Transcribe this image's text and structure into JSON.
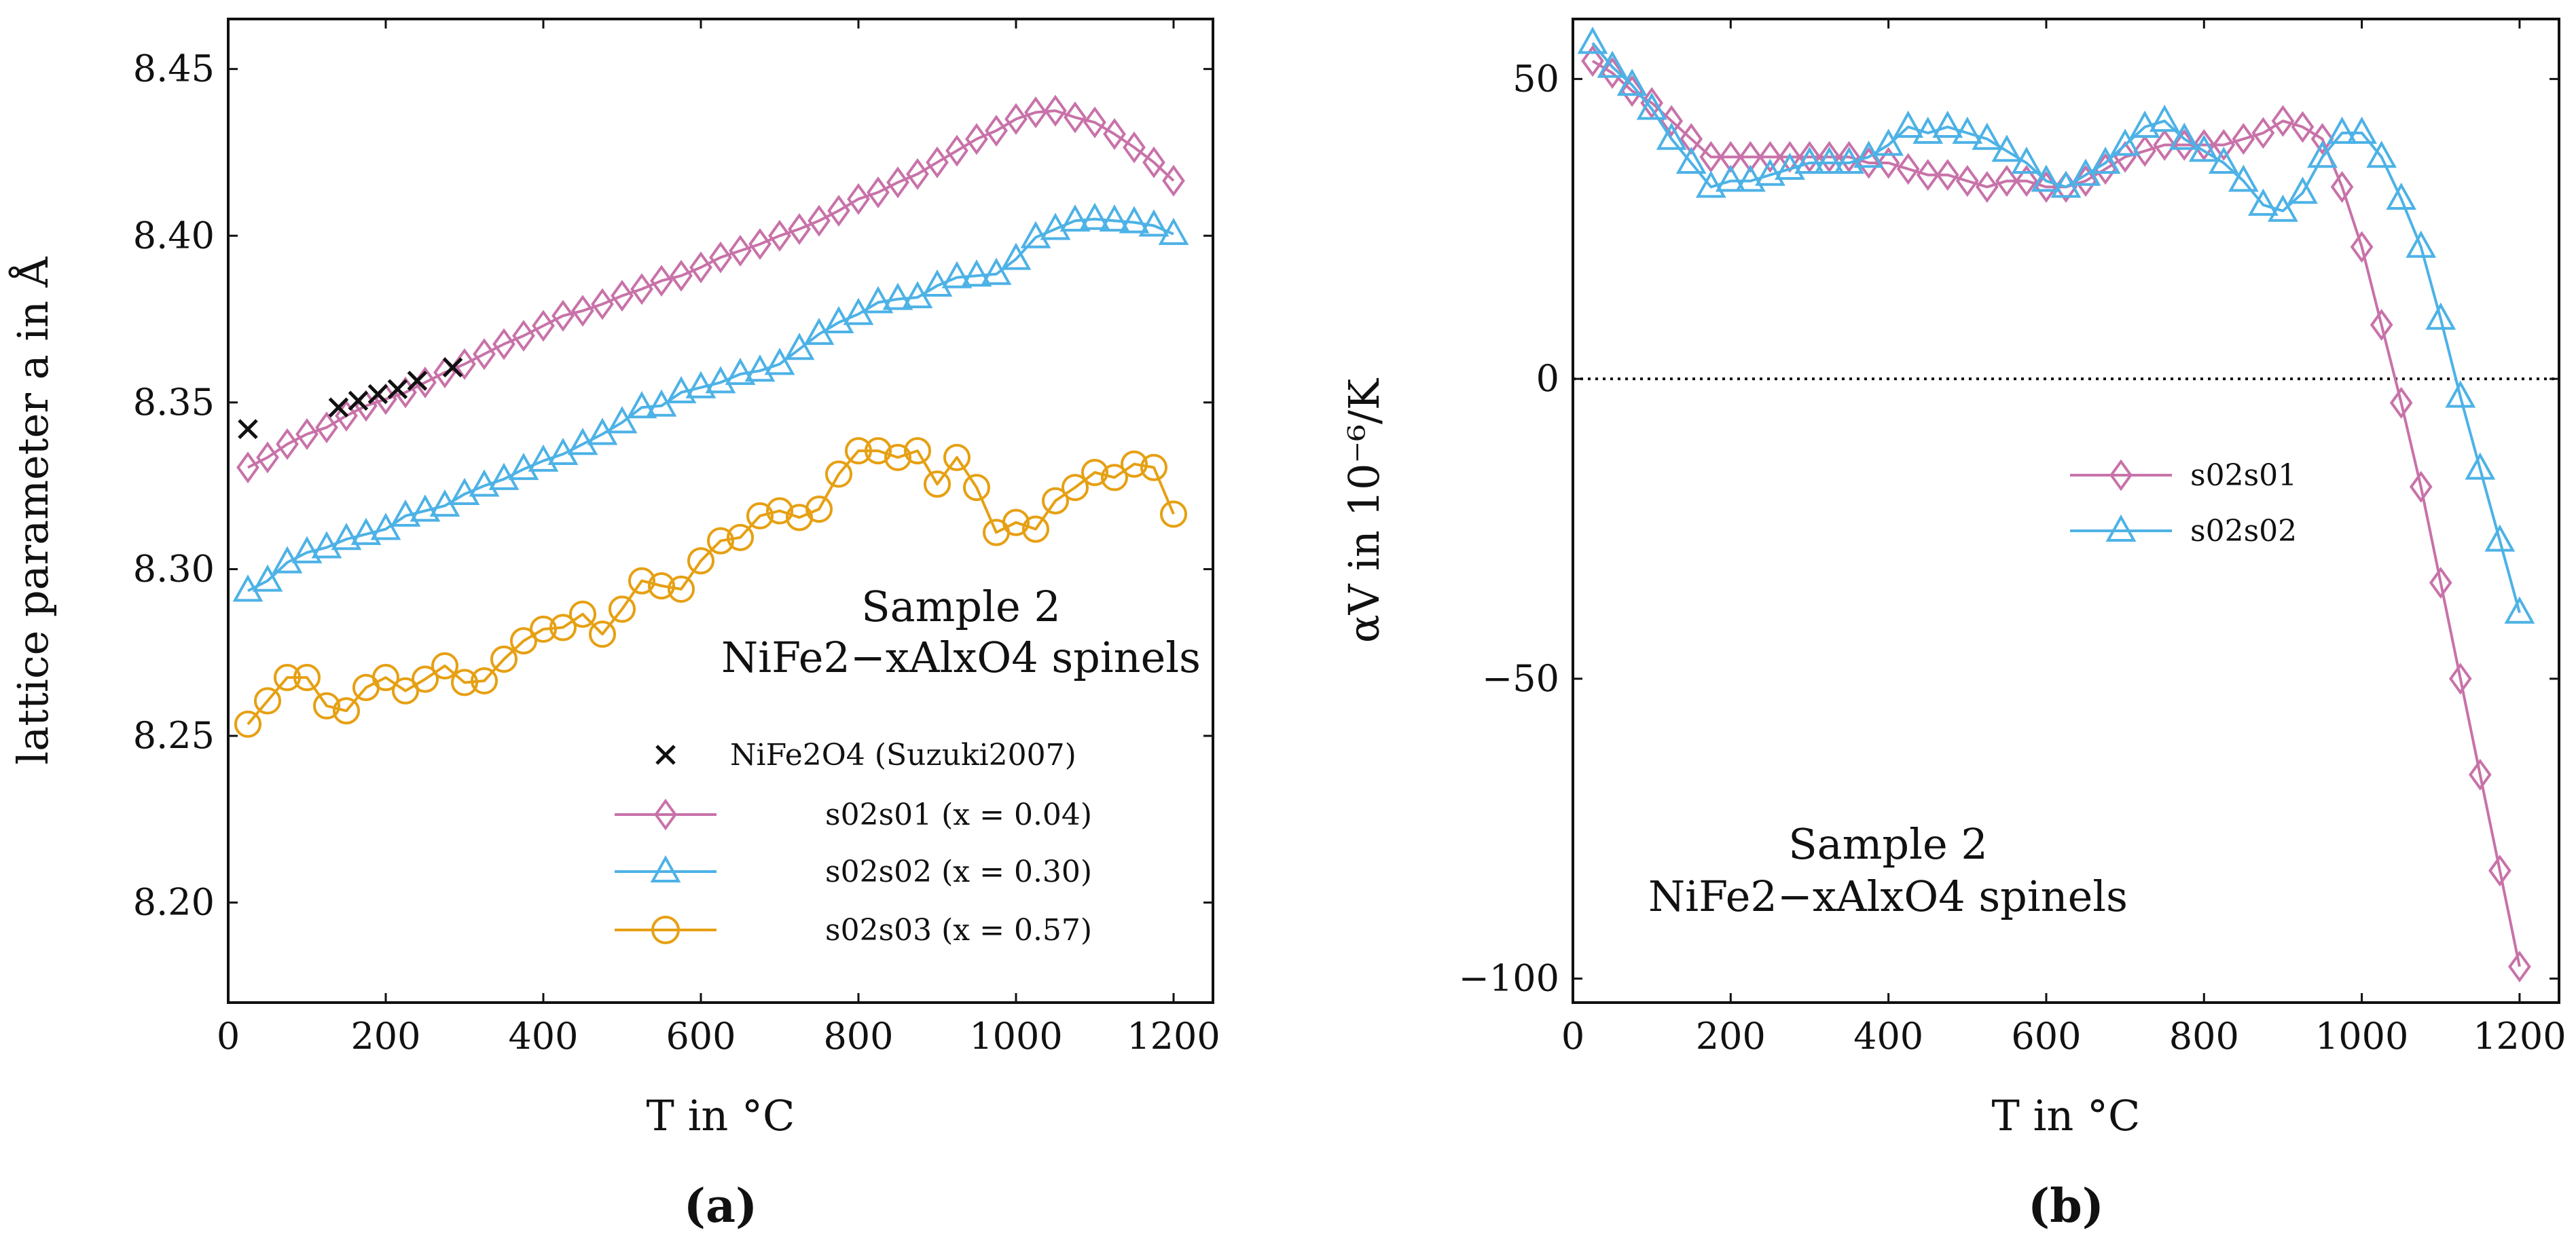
{
  "figure": {
    "colors": {
      "s02s01": "#c872a9",
      "s02s02": "#4db2e6",
      "s02s03": "#e6a013",
      "reference": "#111111",
      "axis": "#111111"
    }
  },
  "chart_data": [
    {
      "type": "line",
      "panel_label": "(a)",
      "xlabel": "T in °C",
      "ylabel": "lattice parameter a in Å",
      "xlim": [
        0,
        1250
      ],
      "ylim": [
        8.17,
        8.465
      ],
      "xticks": [
        0,
        200,
        400,
        600,
        800,
        1000,
        1200
      ],
      "xtick_labels": [
        "0",
        "200",
        "400",
        "600",
        "800",
        "1000",
        "1200"
      ],
      "yticks": [
        8.2,
        8.25,
        8.3,
        8.35,
        8.4,
        8.45
      ],
      "ytick_labels": [
        "8.20",
        "8.25",
        "8.30",
        "8.35",
        "8.40",
        "8.45"
      ],
      "annotation": [
        "Sample 2",
        "NiFe2−xAlxO4 spinels"
      ],
      "legend": [
        {
          "label": "NiFe2O4 (Suzuki2007)",
          "marker": "cross",
          "color_key": "reference"
        },
        {
          "label": "s02s01 (x = 0.04)",
          "marker": "diamond",
          "color_key": "s02s01"
        },
        {
          "label": "s02s02 (x = 0.30)",
          "marker": "triangle",
          "color_key": "s02s02"
        },
        {
          "label": "s02s03 (x = 0.57)",
          "marker": "circle",
          "color_key": "s02s03"
        }
      ],
      "x": [
        25,
        50,
        75,
        100,
        125,
        150,
        175,
        200,
        225,
        250,
        275,
        300,
        325,
        350,
        375,
        400,
        425,
        450,
        475,
        500,
        525,
        550,
        575,
        600,
        625,
        650,
        675,
        700,
        725,
        750,
        775,
        800,
        825,
        850,
        875,
        900,
        925,
        950,
        975,
        1000,
        1025,
        1050,
        1075,
        1100,
        1125,
        1150,
        1175,
        1200
      ],
      "series": [
        {
          "name": "s02s01",
          "color_key": "s02s01",
          "marker": "diamond",
          "values": [
            8.3305,
            8.3335,
            8.3375,
            8.3405,
            8.3425,
            8.346,
            8.349,
            8.351,
            8.353,
            8.356,
            8.359,
            8.3615,
            8.3645,
            8.3675,
            8.37,
            8.373,
            8.376,
            8.3775,
            8.3795,
            8.382,
            8.384,
            8.3865,
            8.388,
            8.3905,
            8.3935,
            8.3955,
            8.3975,
            8.4,
            8.402,
            8.4045,
            8.4075,
            8.411,
            8.413,
            8.416,
            8.4185,
            8.422,
            8.4255,
            8.429,
            8.4315,
            8.435,
            8.437,
            8.4375,
            8.4355,
            8.434,
            8.4305,
            8.4265,
            8.422,
            8.4165
          ]
        },
        {
          "name": "s02s02",
          "color_key": "s02s02",
          "marker": "triangle",
          "values": [
            8.2935,
            8.2965,
            8.302,
            8.305,
            8.3065,
            8.309,
            8.3105,
            8.312,
            8.316,
            8.3175,
            8.319,
            8.3225,
            8.325,
            8.327,
            8.33,
            8.3325,
            8.3345,
            8.3375,
            8.3405,
            8.344,
            8.3485,
            8.349,
            8.353,
            8.3545,
            8.356,
            8.3585,
            8.3595,
            8.3615,
            8.366,
            8.3705,
            8.374,
            8.3765,
            8.38,
            8.381,
            8.3815,
            8.385,
            8.3875,
            8.388,
            8.3885,
            8.393,
            8.3995,
            8.402,
            8.4045,
            8.405,
            8.4045,
            8.404,
            8.403,
            8.4005
          ]
        },
        {
          "name": "s02s03",
          "color_key": "s02s03",
          "marker": "circle",
          "values": [
            8.2535,
            8.2605,
            8.2675,
            8.2675,
            8.259,
            8.2575,
            8.2645,
            8.2675,
            8.2635,
            8.267,
            8.271,
            8.266,
            8.2665,
            8.273,
            8.2785,
            8.282,
            8.2825,
            8.2865,
            8.2805,
            8.288,
            8.2965,
            8.295,
            8.294,
            8.3025,
            8.3085,
            8.3095,
            8.316,
            8.3175,
            8.3155,
            8.318,
            8.3285,
            8.3355,
            8.3355,
            8.3335,
            8.3355,
            8.3255,
            8.3335,
            8.3245,
            8.311,
            8.314,
            8.312,
            8.3205,
            8.3245,
            8.329,
            8.3275,
            8.3315,
            8.3305,
            8.3165
          ]
        },
        {
          "name": "NiFe2O4 (Suzuki2007)",
          "color_key": "reference",
          "marker": "cross",
          "line": false,
          "x": [
            25,
            140,
            165,
            190,
            215,
            240,
            285
          ],
          "values": [
            8.342,
            8.3485,
            8.3505,
            8.3525,
            8.354,
            8.3565,
            8.3605
          ]
        }
      ]
    },
    {
      "type": "line",
      "panel_label": "(b)",
      "xlabel": "T in °C",
      "ylabel": "αV in 10⁻⁶/K",
      "xlim": [
        0,
        1250
      ],
      "ylim": [
        -104,
        60
      ],
      "xticks": [
        0,
        200,
        400,
        600,
        800,
        1000,
        1200
      ],
      "xtick_labels": [
        "0",
        "200",
        "400",
        "600",
        "800",
        "1000",
        "1200"
      ],
      "yticks": [
        -100,
        -50,
        0,
        50
      ],
      "ytick_labels": [
        "−100",
        "−50",
        "0",
        "50"
      ],
      "zero_line": "dotted",
      "annotation": [
        "Sample 2",
        "NiFe2−xAlxO4 spinels"
      ],
      "legend": [
        {
          "label": "s02s01",
          "marker": "diamond",
          "color_key": "s02s01"
        },
        {
          "label": "s02s02",
          "marker": "triangle",
          "color_key": "s02s02"
        }
      ],
      "x": [
        25,
        50,
        75,
        100,
        125,
        150,
        175,
        200,
        225,
        250,
        275,
        300,
        325,
        350,
        375,
        400,
        425,
        450,
        475,
        500,
        525,
        550,
        575,
        600,
        625,
        650,
        675,
        700,
        725,
        750,
        775,
        800,
        825,
        850,
        875,
        900,
        925,
        950,
        975,
        1000,
        1025,
        1050,
        1075,
        1100,
        1125,
        1150,
        1175,
        1200
      ],
      "series": [
        {
          "name": "s02s01",
          "color_key": "s02s01",
          "marker": "diamond",
          "values": [
            53,
            51,
            48,
            46,
            43,
            40,
            37,
            37,
            37,
            37,
            37,
            37,
            37,
            37,
            36,
            36,
            35,
            34,
            34,
            33,
            32,
            33,
            33,
            32,
            32,
            33,
            35,
            37,
            38,
            39,
            39,
            39,
            39,
            40,
            41,
            43,
            42,
            40,
            32,
            22,
            9,
            -4,
            -18,
            -34,
            -50,
            -66,
            -82,
            -98
          ]
        },
        {
          "name": "s02s02",
          "color_key": "s02s02",
          "marker": "triangle",
          "values": [
            56,
            52,
            49,
            45,
            40,
            36,
            32,
            33,
            33,
            34,
            35,
            36,
            36,
            36,
            37,
            39,
            42,
            41,
            42,
            41,
            40,
            38,
            36,
            33,
            32,
            34,
            36,
            39,
            42,
            43,
            40,
            38,
            36,
            33,
            29,
            28,
            31,
            37,
            41,
            41,
            37,
            30,
            22,
            10,
            -3,
            -15,
            -27,
            -39
          ]
        }
      ]
    }
  ]
}
